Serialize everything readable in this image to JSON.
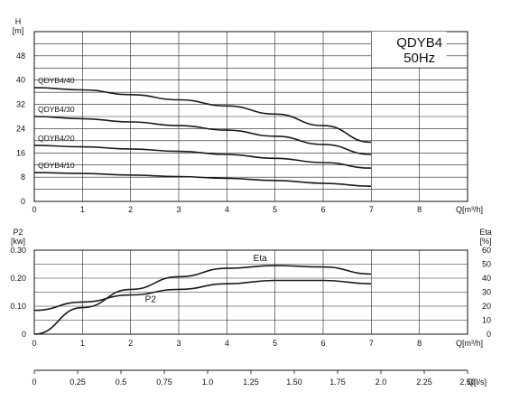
{
  "chart_data": [
    {
      "type": "line",
      "title_lines": [
        "QDYB4",
        "50Hz"
      ],
      "y_axis_label": "H",
      "y_axis_unit": "[m]",
      "x_axis_label": "Q[m³/h]",
      "xlim": [
        0,
        9
      ],
      "ylim": [
        0,
        56
      ],
      "x_ticks": [
        "0",
        "1",
        "2",
        "3",
        "4",
        "5",
        "6",
        "7",
        "8"
      ],
      "y_ticks": [
        "0",
        "8",
        "16",
        "24",
        "32",
        "40",
        "48"
      ],
      "grid": true,
      "series": [
        {
          "name": "QDYB4/40",
          "x": [
            0,
            1,
            2,
            3,
            4,
            5,
            6,
            7
          ],
          "y": [
            37.5,
            36.8,
            35.2,
            33.5,
            31.5,
            28.8,
            25.0,
            19.5
          ]
        },
        {
          "name": "QDYB4/30",
          "x": [
            0,
            1,
            2,
            3,
            4,
            5,
            6,
            7
          ],
          "y": [
            28.0,
            27.3,
            26.2,
            25.0,
            23.5,
            21.5,
            18.8,
            15.5
          ]
        },
        {
          "name": "QDYB4/20",
          "x": [
            0,
            1,
            2,
            3,
            4,
            5,
            6,
            7
          ],
          "y": [
            18.5,
            18.0,
            17.3,
            16.5,
            15.5,
            14.2,
            12.8,
            11.0
          ]
        },
        {
          "name": "QDYB4/10",
          "x": [
            0,
            1,
            2,
            3,
            4,
            5,
            6,
            7
          ],
          "y": [
            9.5,
            9.2,
            8.7,
            8.2,
            7.6,
            6.9,
            6.0,
            5.0
          ]
        }
      ]
    },
    {
      "type": "line",
      "y_axis_label": "P2",
      "y_axis_unit": "[kw]",
      "y2_axis_label": "Eta",
      "y2_axis_unit": "[%]",
      "x_axis_label": "Q[m³/h]",
      "xlim": [
        0,
        9
      ],
      "ylim": [
        0,
        0.3
      ],
      "y2lim": [
        0,
        60
      ],
      "x_ticks": [
        "0",
        "1",
        "2",
        "3",
        "4",
        "5",
        "6",
        "7",
        "8"
      ],
      "y_ticks": [
        "0",
        "0.10",
        "0.20",
        "0.30"
      ],
      "y2_ticks": [
        "0",
        "10",
        "20",
        "30",
        "40",
        "50",
        "60"
      ],
      "grid": true,
      "series": [
        {
          "name": "P2",
          "axis": "left",
          "x": [
            0,
            1,
            2,
            3,
            4,
            5,
            6,
            7
          ],
          "y": [
            0.085,
            0.115,
            0.14,
            0.16,
            0.18,
            0.192,
            0.192,
            0.18
          ]
        },
        {
          "name": "Eta",
          "axis": "right",
          "x": [
            0,
            1,
            2,
            3,
            4,
            5,
            6,
            7
          ],
          "y": [
            0,
            19,
            32,
            41,
            47,
            49,
            48,
            43
          ]
        }
      ]
    },
    {
      "type": "axis",
      "x_axis_label": "Q[l/s]",
      "x_ticks": [
        "0",
        "0.25",
        "0.5",
        "0.75",
        "1.0",
        "1.25",
        "1.50",
        "1.75",
        "2.0",
        "2.25",
        "2.50"
      ]
    }
  ]
}
